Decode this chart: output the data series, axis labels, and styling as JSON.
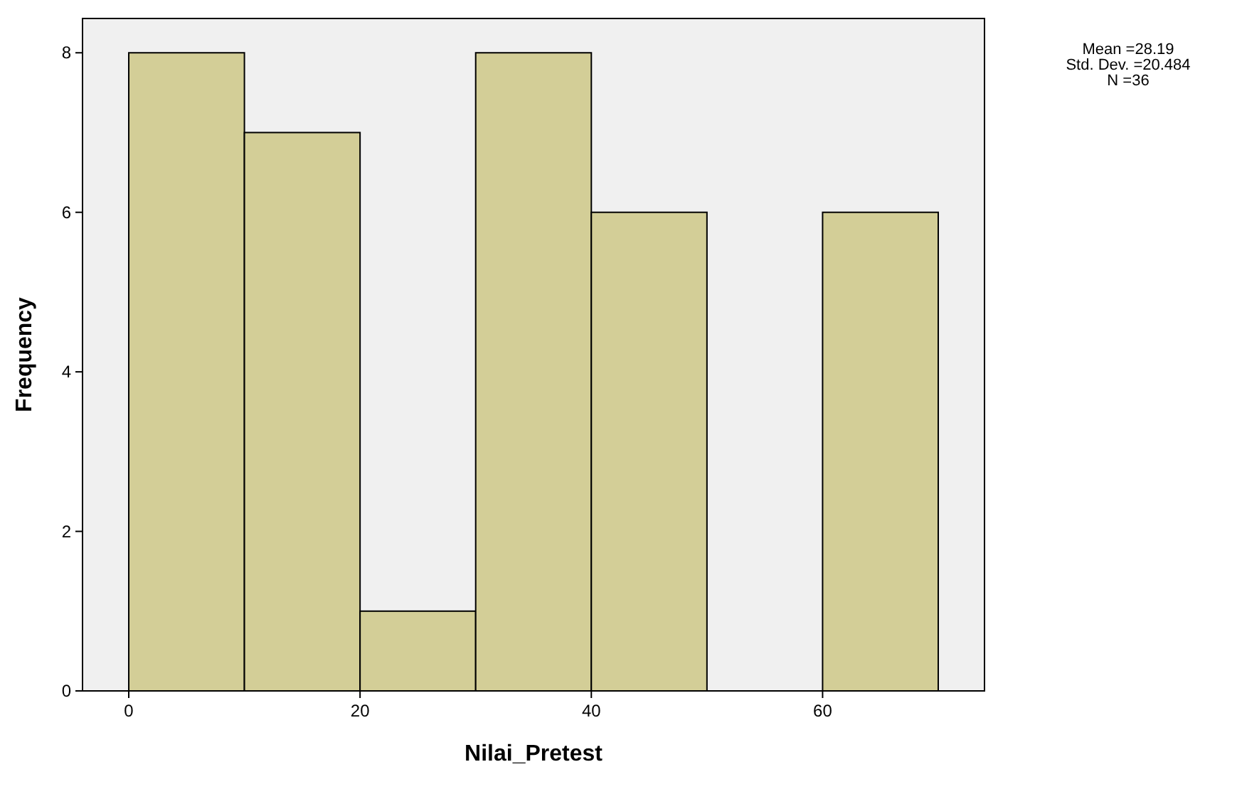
{
  "chart_data": {
    "type": "histogram",
    "xlabel": "Nilai_Pretest",
    "ylabel": "Frequency",
    "bins": [
      0,
      10,
      20,
      30,
      40,
      50,
      60,
      70
    ],
    "values": [
      8,
      7,
      1,
      8,
      6,
      0,
      6
    ],
    "color": "#d3ce97",
    "xlim": [
      -4,
      74
    ],
    "ylim": [
      0,
      8.43
    ],
    "xticks": [
      0,
      20,
      40,
      60
    ],
    "yticks": [
      0,
      2,
      4,
      6,
      8
    ],
    "annotations": [
      "Mean =28.19",
      "Std. Dev. =20.484",
      "N =36"
    ]
  }
}
